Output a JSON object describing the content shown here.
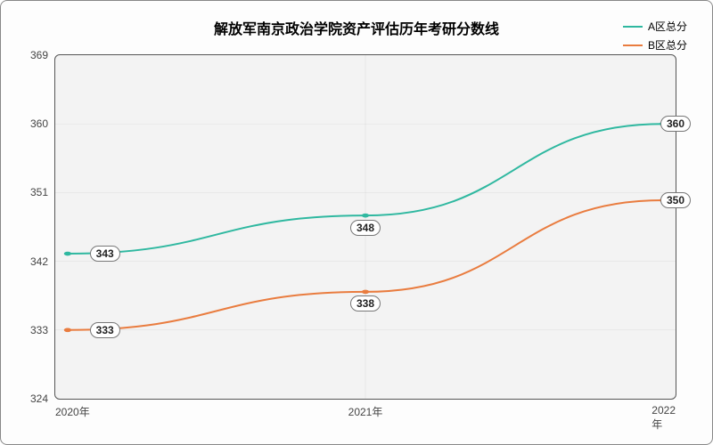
{
  "chart": {
    "type": "line",
    "title": "解放军南京政治学院资产评估历年考研分数线",
    "title_fontsize": 16,
    "background_color": "#fdfdfd",
    "plot_background": "#f3f3f3",
    "grid_color": "#cfcfcf",
    "axis_color": "#555555",
    "x": {
      "labels": [
        "2020年",
        "2021年",
        "2022年"
      ],
      "positions_pct": [
        2,
        50,
        98
      ]
    },
    "y": {
      "min": 324,
      "max": 369,
      "ticks": [
        324,
        333,
        342,
        351,
        360,
        369
      ]
    },
    "series": [
      {
        "name": "A区总分",
        "color": "#2fb8a0",
        "values": [
          343,
          348,
          360
        ],
        "label_offsets": [
          [
            6,
            0
          ],
          [
            0,
            3.5
          ],
          [
            2,
            0
          ]
        ]
      },
      {
        "name": "B区总分",
        "color": "#e97c3f",
        "values": [
          333,
          338,
          350
        ],
        "label_offsets": [
          [
            6,
            0
          ],
          [
            0,
            3.5
          ],
          [
            2,
            0
          ]
        ]
      }
    ],
    "line_width": 2,
    "marker_radius": 3,
    "label_fontsize": 12
  }
}
